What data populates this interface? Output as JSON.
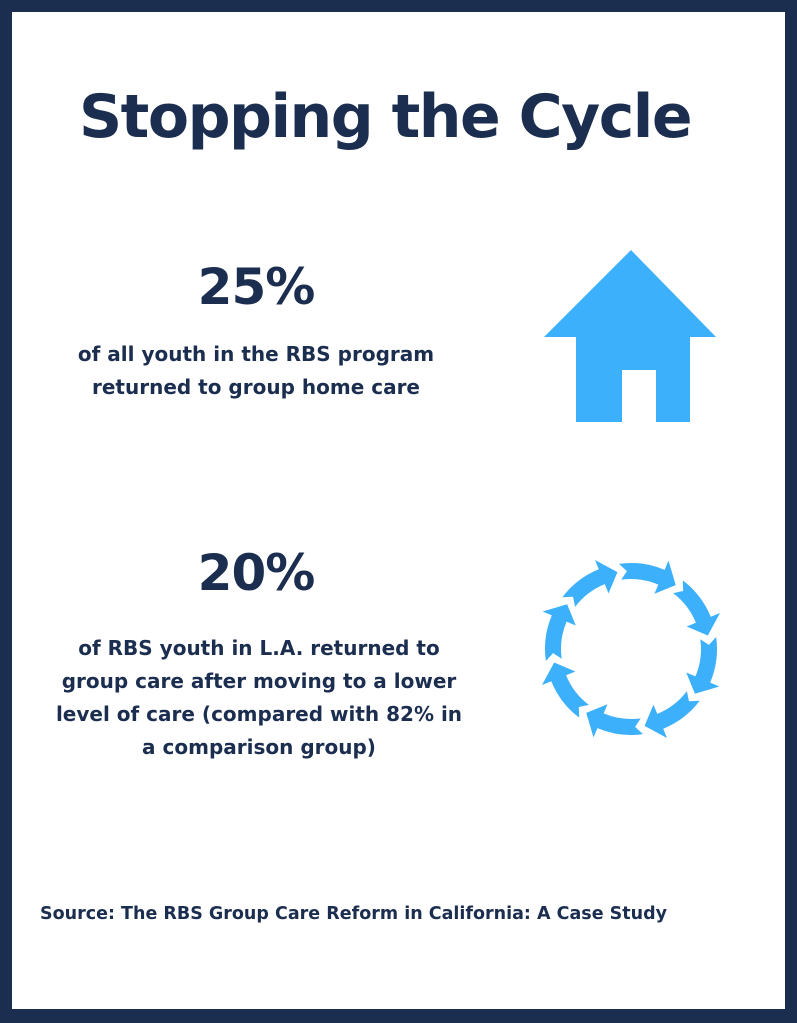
{
  "title": "Stopping the Cycle",
  "stats": [
    {
      "value": "25%",
      "text": "of all youth in the RBS program returned to group home care",
      "icon": "house-icon"
    },
    {
      "value": "20%",
      "text": "of RBS youth in L.A. returned to group care after moving to a lower level of care (compared with 82% in a comparison group)",
      "icon": "cycle-arrows-icon"
    }
  ],
  "source": "Source: The RBS Group Care Reform in California: A Case Study",
  "colors": {
    "navy": "#1b2e4f",
    "accent": "#3cb0fb"
  }
}
